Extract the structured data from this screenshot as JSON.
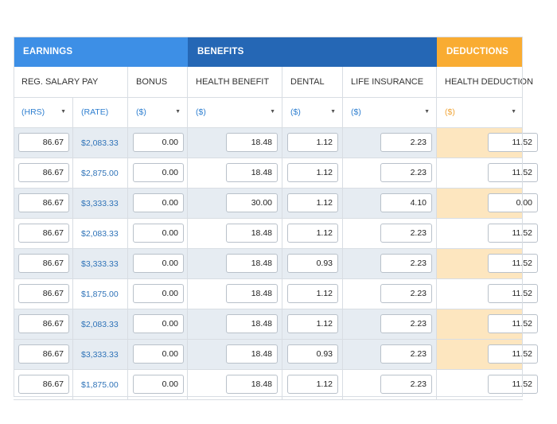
{
  "groups": {
    "earnings": "EARNINGS",
    "benefits": "BENEFITS",
    "deductions": "DEDUCTIONS"
  },
  "headers": [
    "REG. SALARY PAY",
    "BONUS",
    "HEALTH BENEFIT",
    "DENTAL",
    "LIFE INSURANCE",
    "HEALTH DEDUCTION"
  ],
  "subheaders": [
    "(HRS)",
    "(RATE)",
    "($)",
    "($)",
    "($)",
    "($)",
    "($)"
  ],
  "rows": [
    {
      "hrs": "86.67",
      "rate": "$2,083.33",
      "bonus": "0.00",
      "health": "18.48",
      "dental": "1.12",
      "life": "2.23",
      "deduction": "11.52"
    },
    {
      "hrs": "86.67",
      "rate": "$2,875.00",
      "bonus": "0.00",
      "health": "18.48",
      "dental": "1.12",
      "life": "2.23",
      "deduction": "11.52"
    },
    {
      "hrs": "86.67",
      "rate": "$3,333.33",
      "bonus": "0.00",
      "health": "30.00",
      "dental": "1.12",
      "life": "4.10",
      "deduction": "0.00"
    },
    {
      "hrs": "86.67",
      "rate": "$2,083.33",
      "bonus": "0.00",
      "health": "18.48",
      "dental": "1.12",
      "life": "2.23",
      "deduction": "11.52"
    },
    {
      "hrs": "86.67",
      "rate": "$3,333.33",
      "bonus": "0.00",
      "health": "18.48",
      "dental": "0.93",
      "life": "2.23",
      "deduction": "11.52"
    },
    {
      "hrs": "86.67",
      "rate": "$1,875.00",
      "bonus": "0.00",
      "health": "18.48",
      "dental": "1.12",
      "life": "2.23",
      "deduction": "11.52"
    },
    {
      "hrs": "86.67",
      "rate": "$2,083.33",
      "bonus": "0.00",
      "health": "18.48",
      "dental": "1.12",
      "life": "2.23",
      "deduction": "11.52"
    },
    {
      "hrs": "86.67",
      "rate": "$3,333.33",
      "bonus": "0.00",
      "health": "18.48",
      "dental": "0.93",
      "life": "2.23",
      "deduction": "11.52"
    },
    {
      "hrs": "86.67",
      "rate": "$1,875.00",
      "bonus": "0.00",
      "health": "18.48",
      "dental": "1.12",
      "life": "2.23",
      "deduction": "11.52"
    }
  ],
  "colors": {
    "earnings": "#3d8fe6",
    "benefits": "#2567b5",
    "deductions": "#f9ac32",
    "shade": "#e6ecf2",
    "deduction_shade": "#fde6bf"
  }
}
